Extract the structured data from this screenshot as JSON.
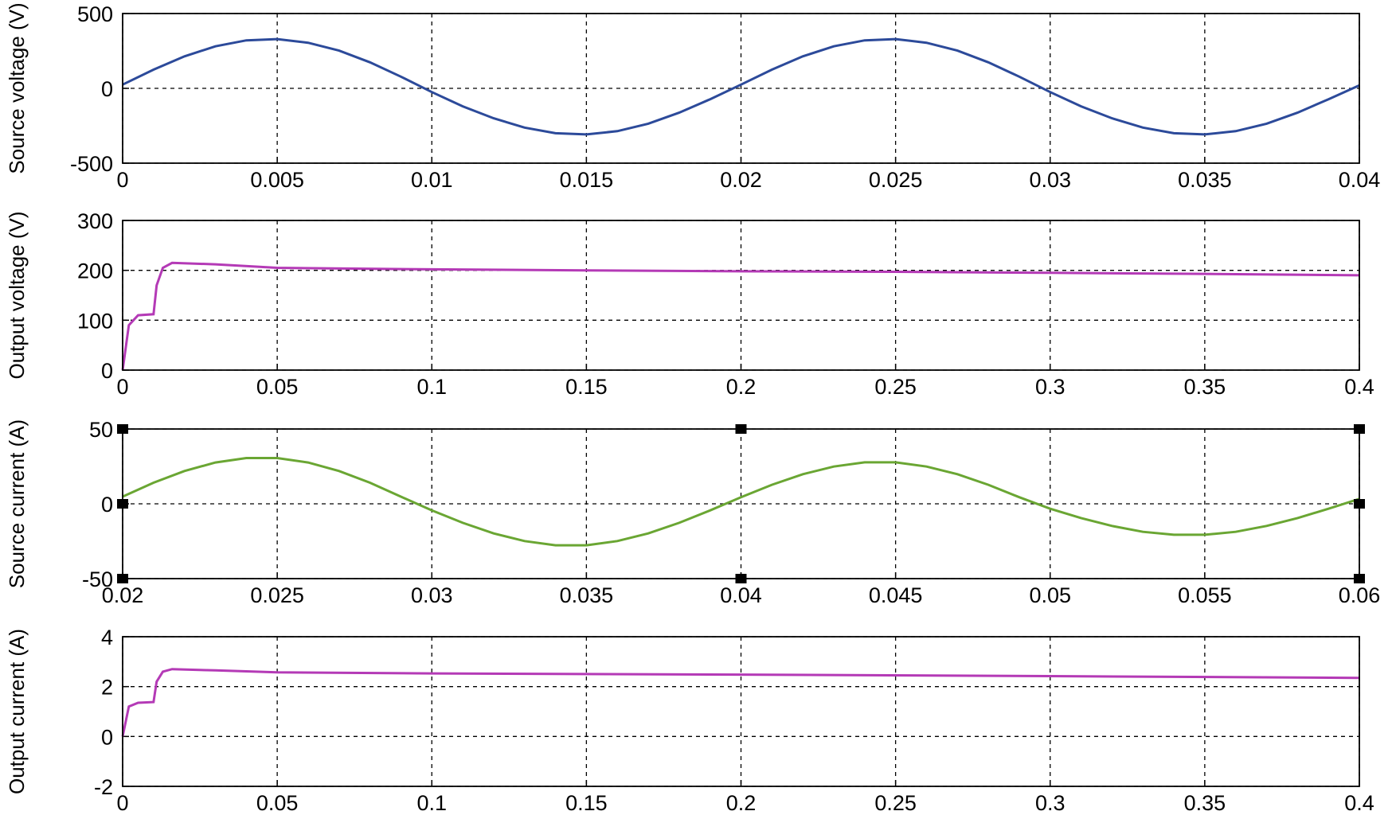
{
  "chart_data": [
    {
      "type": "line",
      "y_label": "Source voltage (V)",
      "color": "#2c4a9a",
      "grid": true,
      "xlim": [
        0,
        0.04
      ],
      "xticks": [
        0,
        0.005,
        0.01,
        0.015,
        0.02,
        0.025,
        0.03,
        0.035,
        0.04
      ],
      "ylim": [
        -500,
        500
      ],
      "yticks": [
        -500,
        0,
        500
      ],
      "x": [
        0,
        0.001,
        0.002,
        0.003,
        0.004,
        0.005,
        0.006,
        0.007,
        0.008,
        0.009,
        0.01,
        0.011,
        0.012,
        0.013,
        0.014,
        0.015,
        0.016,
        0.017,
        0.018,
        0.019,
        0.02,
        0.021,
        0.022,
        0.023,
        0.024,
        0.025,
        0.026,
        0.027,
        0.028,
        0.029,
        0.03,
        0.031,
        0.032,
        0.033,
        0.034,
        0.035,
        0.036,
        0.037,
        0.038,
        0.039,
        0.04
      ],
      "values": [
        25,
        125,
        214,
        281,
        321,
        329,
        305,
        252,
        174,
        78,
        -25,
        -120,
        -200,
        -262,
        -300,
        -308,
        -286,
        -236,
        -163,
        -73,
        25,
        125,
        214,
        281,
        321,
        329,
        305,
        252,
        174,
        78,
        -25,
        -120,
        -200,
        -262,
        -300,
        -308,
        -286,
        -236,
        -163,
        -73,
        20
      ]
    },
    {
      "type": "line",
      "y_label": "Output voltage (V)",
      "color": "#b43ab6",
      "grid": true,
      "xlim": [
        0,
        0.4
      ],
      "xticks": [
        0,
        0.05,
        0.1,
        0.15,
        0.2,
        0.25,
        0.3,
        0.35,
        0.4
      ],
      "ylim": [
        0,
        300
      ],
      "yticks": [
        0,
        100,
        200,
        300
      ],
      "x": [
        0,
        0.002,
        0.005,
        0.01,
        0.011,
        0.013,
        0.016,
        0.03,
        0.05,
        0.1,
        0.15,
        0.2,
        0.25,
        0.3,
        0.35,
        0.4
      ],
      "values": [
        0,
        90,
        110,
        112,
        170,
        205,
        215,
        212,
        205,
        202,
        200,
        198,
        197,
        195,
        193,
        190
      ]
    },
    {
      "type": "line",
      "y_label": "Source current (A)",
      "color": "#6aa633",
      "grid": true,
      "xlim": [
        0.02,
        0.06
      ],
      "xticks": [
        0.02,
        0.025,
        0.03,
        0.035,
        0.04,
        0.045,
        0.05,
        0.055,
        0.06
      ],
      "ylim": [
        -50,
        50
      ],
      "yticks": [
        -50,
        0,
        50
      ],
      "x": [
        0.02,
        0.021,
        0.022,
        0.023,
        0.024,
        0.025,
        0.026,
        0.027,
        0.028,
        0.029,
        0.03,
        0.031,
        0.032,
        0.033,
        0.034,
        0.035,
        0.036,
        0.037,
        0.038,
        0.039,
        0.04,
        0.041,
        0.042,
        0.043,
        0.044,
        0.045,
        0.046,
        0.047,
        0.048,
        0.049,
        0.05,
        0.051,
        0.052,
        0.053,
        0.054,
        0.055,
        0.056,
        0.057,
        0.058,
        0.059,
        0.06
      ],
      "values": [
        4.8,
        14.1,
        21.9,
        27.6,
        30.6,
        30.6,
        27.6,
        21.9,
        14.1,
        4.8,
        -4.4,
        -12.7,
        -19.8,
        -24.9,
        -27.7,
        -27.7,
        -24.9,
        -19.8,
        -12.7,
        -4.4,
        4.4,
        12.7,
        19.8,
        24.9,
        27.7,
        27.7,
        24.9,
        19.8,
        12.7,
        4.4,
        -3.3,
        -9.5,
        -14.8,
        -18.7,
        -20.7,
        -20.7,
        -18.7,
        -14.8,
        -9.5,
        -3.3,
        3.3
      ]
    },
    {
      "type": "line",
      "y_label": "Output current (A)",
      "color": "#b43ab6",
      "grid": true,
      "xlim": [
        0,
        0.4
      ],
      "xticks": [
        0,
        0.05,
        0.1,
        0.15,
        0.2,
        0.25,
        0.3,
        0.35,
        0.4
      ],
      "ylim": [
        -2,
        4
      ],
      "yticks": [
        -2,
        0,
        2,
        4
      ],
      "x": [
        0,
        0.002,
        0.005,
        0.01,
        0.011,
        0.013,
        0.016,
        0.03,
        0.05,
        0.1,
        0.2,
        0.3,
        0.4
      ],
      "values": [
        0,
        1.2,
        1.35,
        1.38,
        2.2,
        2.6,
        2.7,
        2.65,
        2.57,
        2.53,
        2.48,
        2.42,
        2.35
      ]
    }
  ]
}
